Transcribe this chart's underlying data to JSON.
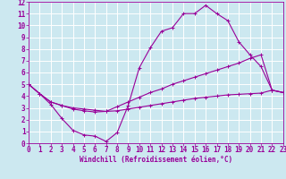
{
  "background_color": "#cce8f0",
  "grid_color": "#ffffff",
  "line_color": "#990099",
  "xlabel": "Windchill (Refroidissement éolien,°C)",
  "xlim": [
    0,
    23
  ],
  "ylim": [
    0,
    12
  ],
  "xticks": [
    0,
    1,
    2,
    3,
    4,
    5,
    6,
    7,
    8,
    9,
    10,
    11,
    12,
    13,
    14,
    15,
    16,
    17,
    18,
    19,
    20,
    21,
    22,
    23
  ],
  "yticks": [
    0,
    1,
    2,
    3,
    4,
    5,
    6,
    7,
    8,
    9,
    10,
    11,
    12
  ],
  "line1_x": [
    0,
    1,
    2,
    3,
    4,
    5,
    6,
    7,
    8,
    9,
    10,
    11,
    12,
    13,
    14,
    15,
    16,
    17,
    18,
    19,
    20,
    21,
    22,
    23
  ],
  "line1_y": [
    5.0,
    4.2,
    3.3,
    2.1,
    1.1,
    0.7,
    0.6,
    0.15,
    0.9,
    3.2,
    6.4,
    8.1,
    9.5,
    9.8,
    11.0,
    11.0,
    11.7,
    11.0,
    10.4,
    8.6,
    7.5,
    6.5,
    4.5,
    4.3
  ],
  "line2_x": [
    0,
    1,
    2,
    3,
    4,
    5,
    6,
    7,
    8,
    9,
    10,
    11,
    12,
    13,
    14,
    15,
    16,
    17,
    18,
    19,
    20,
    21,
    22,
    23
  ],
  "line2_y": [
    5.0,
    4.2,
    3.5,
    3.2,
    2.9,
    2.75,
    2.65,
    2.7,
    3.1,
    3.5,
    3.9,
    4.3,
    4.6,
    5.0,
    5.3,
    5.6,
    5.9,
    6.2,
    6.5,
    6.8,
    7.2,
    7.5,
    4.5,
    4.3
  ],
  "line3_x": [
    0,
    1,
    2,
    3,
    4,
    5,
    6,
    7,
    8,
    9,
    10,
    11,
    12,
    13,
    14,
    15,
    16,
    17,
    18,
    19,
    20,
    21,
    22,
    23
  ],
  "line3_y": [
    5.0,
    4.2,
    3.5,
    3.2,
    3.0,
    2.9,
    2.8,
    2.7,
    2.75,
    2.9,
    3.05,
    3.2,
    3.35,
    3.5,
    3.65,
    3.8,
    3.9,
    4.0,
    4.1,
    4.15,
    4.2,
    4.25,
    4.5,
    4.3
  ],
  "tick_fontsize": 5.5,
  "label_fontsize": 5.5
}
